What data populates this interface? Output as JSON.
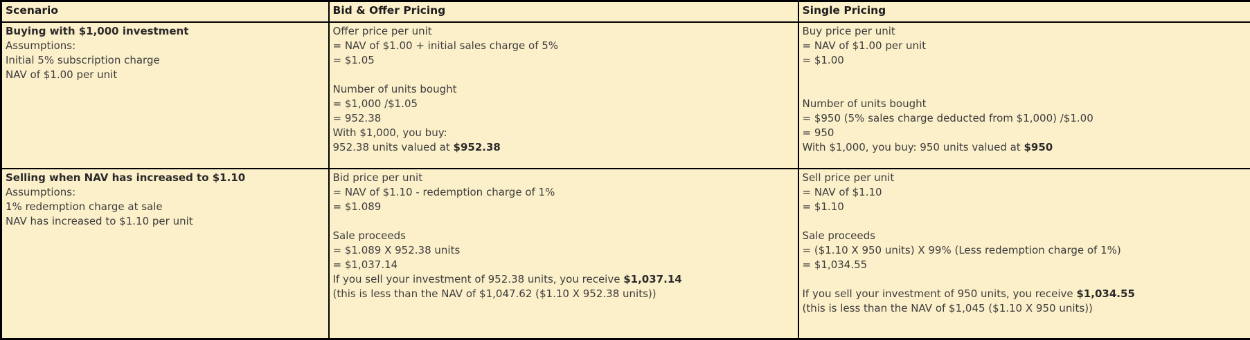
{
  "colors": {
    "background": "#FCF0CA",
    "border": "#000000",
    "text": "#3c3c3c"
  },
  "table": {
    "header": {
      "scenario": "Scenario",
      "bid_offer": "Bid & Offer Pricing",
      "single": "Single Pricing"
    },
    "row1": {
      "scenario": {
        "title": "Buying with $1,000 investment",
        "lines": [
          "Assumptions:",
          "Initial 5% subscription charge",
          "NAV of $1.00 per unit"
        ]
      },
      "bid_offer": {
        "lines": [
          "Offer price per unit",
          "= NAV of $1.00 + initial sales charge of 5%",
          "= $1.05",
          "",
          "Number of units bought",
          "= $1,000 /$1.05",
          "= 952.38",
          "With $1,000, you buy:"
        ],
        "result_prefix": "952.38 units valued at ",
        "result_bold": "$952.38"
      },
      "single": {
        "lines": [
          "Buy price per unit",
          "= NAV of $1.00 per unit",
          "= $1.00",
          "",
          "",
          "Number of units bought",
          "= $950 (5% sales charge deducted from $1,000) /$1.00",
          "= 950"
        ],
        "result_prefix": "With $1,000, you buy: 950 units valued at ",
        "result_bold": "$950"
      }
    },
    "row2": {
      "scenario": {
        "title": "Selling when NAV has increased to $1.10",
        "lines": [
          "Assumptions:",
          "1% redemption charge at sale",
          "NAV has increased to $1.10 per unit"
        ]
      },
      "bid_offer": {
        "lines": [
          "Bid price per unit",
          "= NAV of $1.10 - redemption charge of 1%",
          "= $1.089",
          "",
          "Sale proceeds",
          "= $1.089 X 952.38 units",
          "= $1,037.14"
        ],
        "result_prefix": "If you sell your investment of 952.38 units, you receive ",
        "result_bold": "$1,037.14",
        "note": "(this is less than the NAV of $1,047.62 ($1.10 X 952.38 units))"
      },
      "single": {
        "lines": [
          "Sell price per unit",
          "= NAV of $1.10",
          "= $1.10",
          "",
          "Sale proceeds",
          "= ($1.10 X 950 units) X 99% (Less redemption charge of 1%)",
          "= $1,034.55",
          ""
        ],
        "result_prefix": "If you sell your investment of 950 units, you receive ",
        "result_bold": "$1,034.55",
        "note": "(this is less than the NAV of $1,045 ($1.10 X 950 units))"
      }
    }
  }
}
